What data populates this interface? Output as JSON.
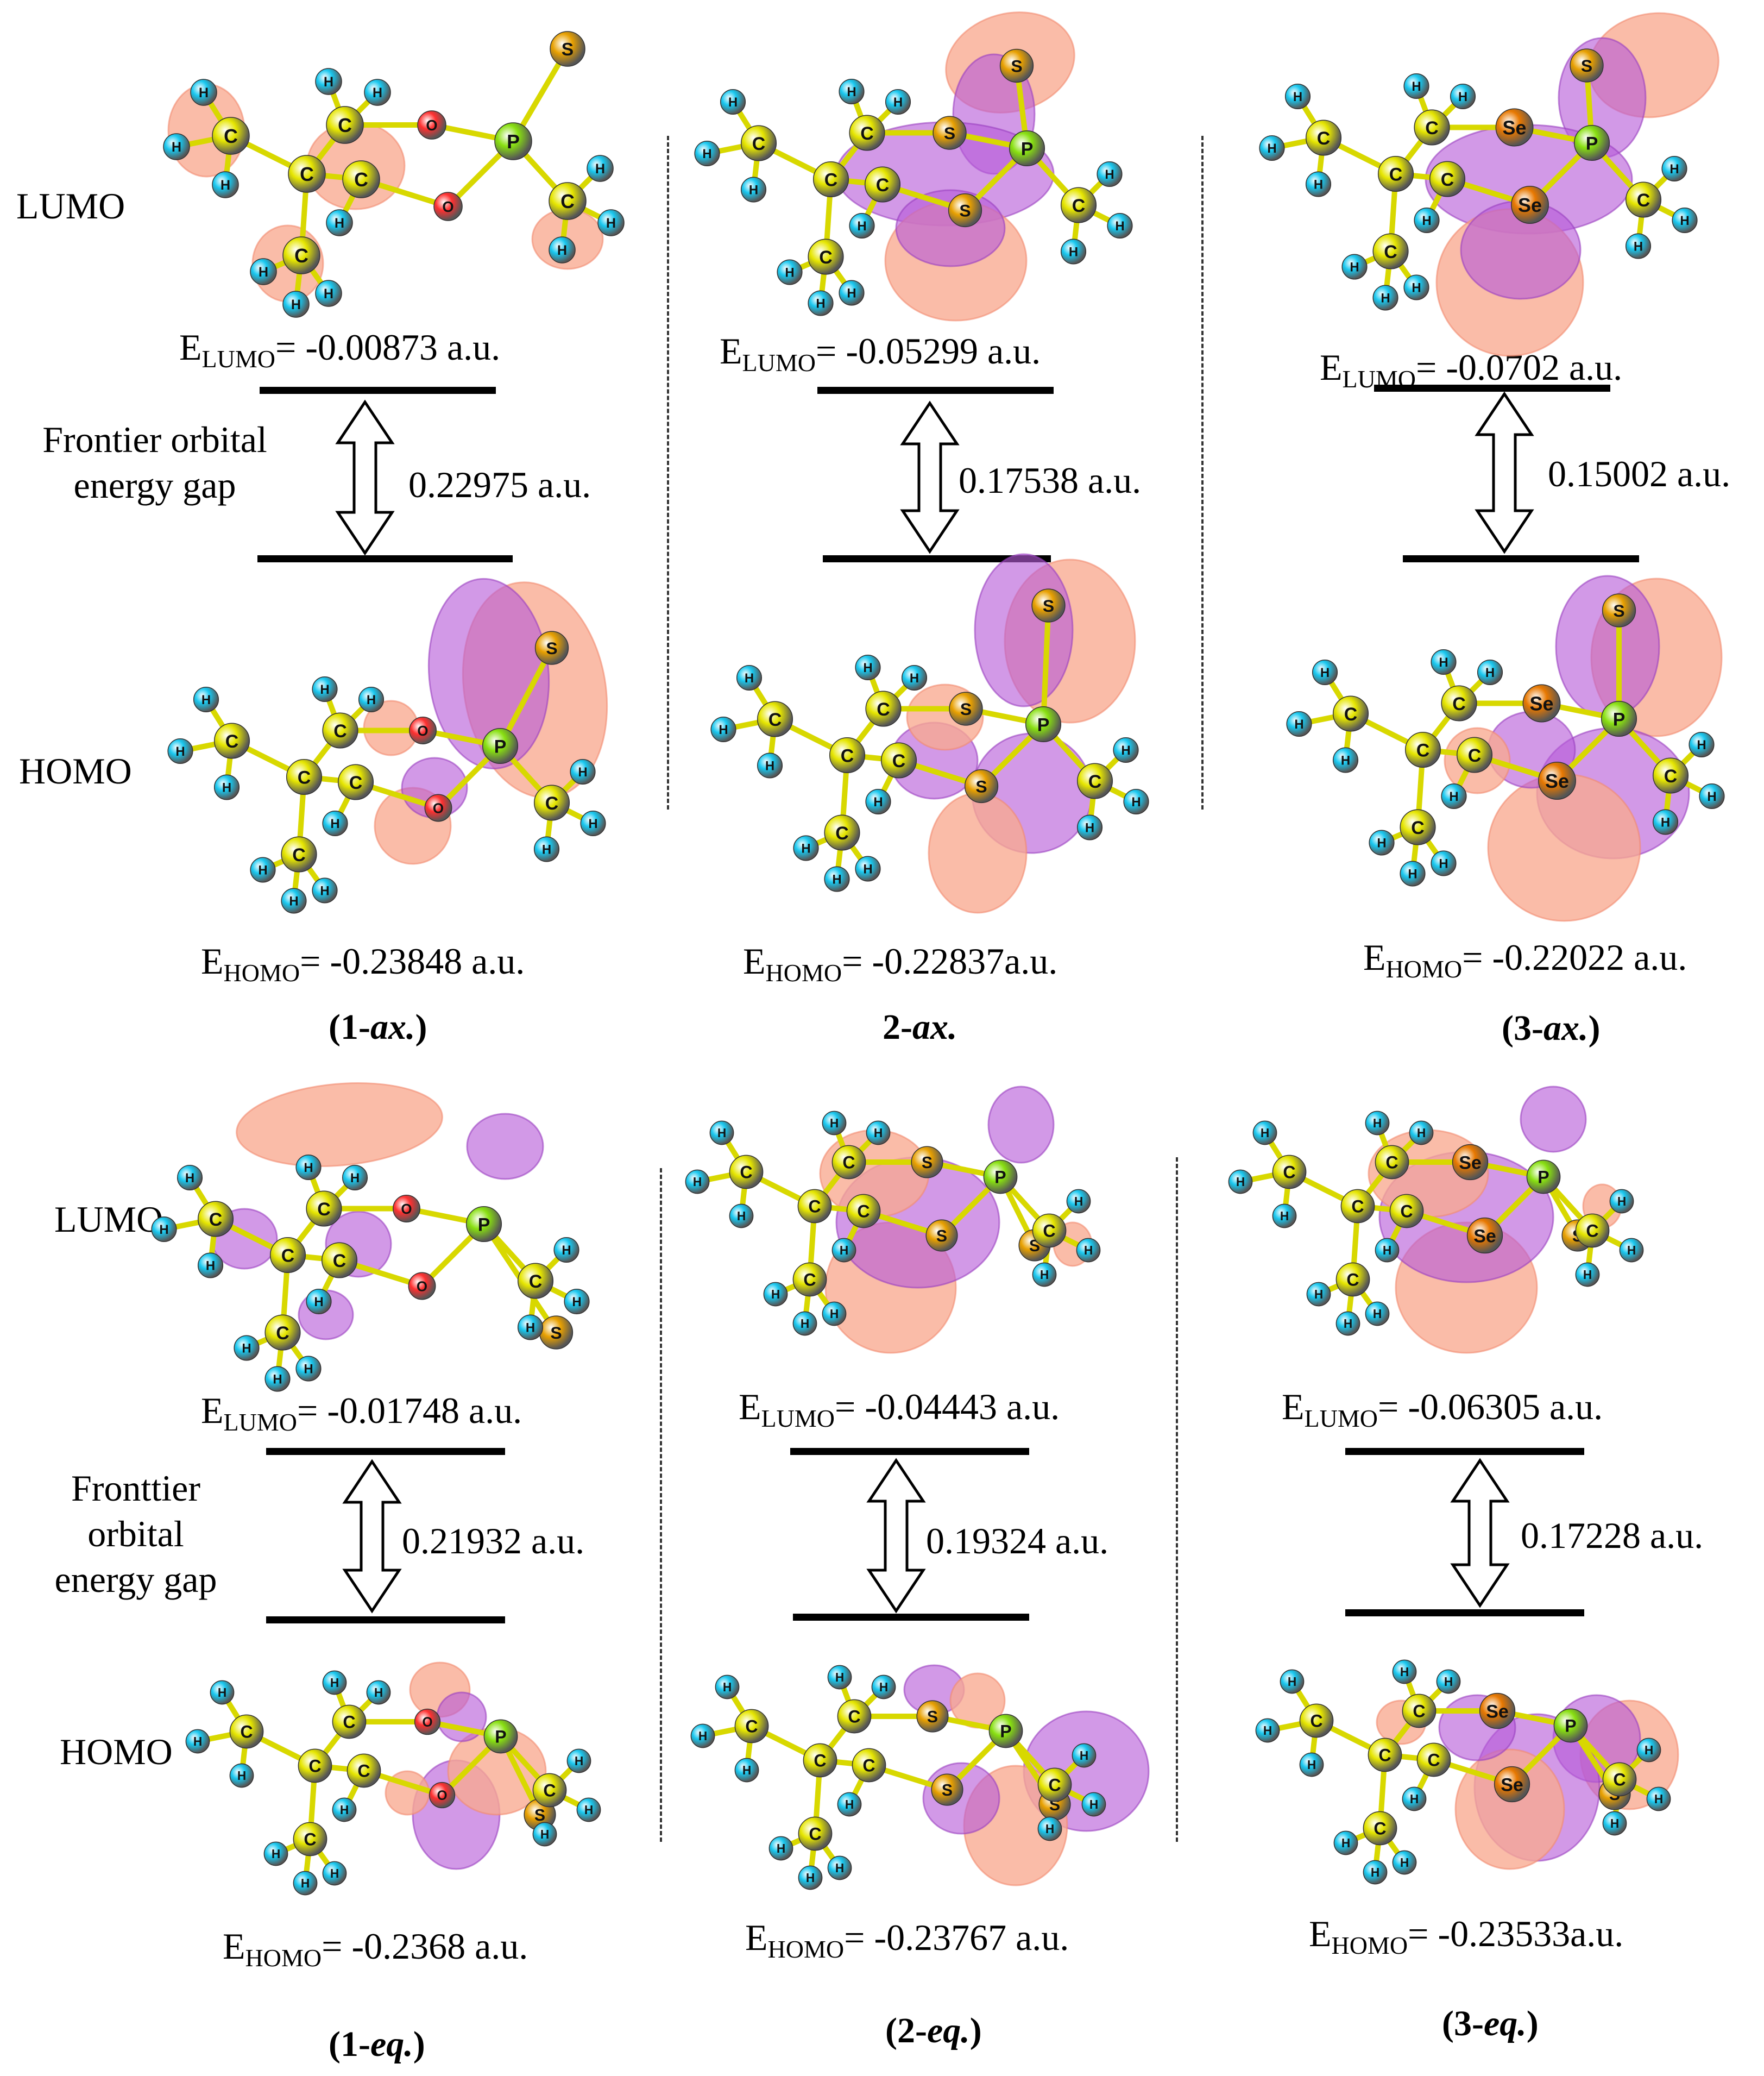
{
  "row_labels": {
    "lumo": "LUMO",
    "homo": "HOMO",
    "gap_lines_top": [
      "Frontier orbital",
      "energy gap"
    ],
    "gap_lines_bottom": [
      "Fronttier",
      "orbital",
      "energy gap"
    ]
  },
  "panels": [
    {
      "title_pre": "(",
      "title_num": "1-",
      "title_ital": "ax.",
      "title_post": ")",
      "lumo_val": "= -0.00873 a.u.",
      "gap": "0.22975 a.u.",
      "homo_val": "= -0.23848 a.u."
    },
    {
      "title_pre": "",
      "title_num": "2-",
      "title_ital": "ax.",
      "title_post": "",
      "lumo_val": "= -0.05299 a.u.",
      "gap": "0.17538 a.u.",
      "homo_val": "= -0.22837a.u."
    },
    {
      "title_pre": "(",
      "title_num": "3-",
      "title_ital": "ax.",
      "title_post": ")",
      "lumo_val": "= -0.0702 a.u.",
      "gap": "0.15002 a.u.",
      "homo_val": "= -0.22022 a.u."
    },
    {
      "title_pre": "(",
      "title_num": "1-",
      "title_ital": "eq.",
      "title_post": ")",
      "lumo_val": "= -0.01748 a.u.",
      "gap": "0.21932 a.u.",
      "homo_val": "= -0.2368 a.u."
    },
    {
      "title_pre": "(",
      "title_num": "2-",
      "title_ital": "eq.",
      "title_post": ")",
      "lumo_val": "= -0.04443 a.u.",
      "gap": "0.19324 a.u.",
      "homo_val": "= -0.23767 a.u."
    },
    {
      "title_pre": "(",
      "title_num": "3-",
      "title_ital": "eq.",
      "title_post": ")",
      "lumo_val": "= -0.06305 a.u.",
      "gap": "0.17228 a.u.",
      "homo_val": "= -0.23533a.u."
    }
  ],
  "energy_symbol": "E",
  "lumo_subscript": "LUMO",
  "homo_subscript": "HOMO",
  "atom_labels": {
    "carbon": "C",
    "hydrogen": "H",
    "oxygen": "O",
    "phosphorus": "P",
    "sulfur": "S",
    "selenium": "Se"
  },
  "colors": {
    "positive_lobe": "#f9a98f",
    "negative_lobe": "#b65ad8",
    "carbon": "#e6e600",
    "hydrogen": "#18c8f0",
    "oxygen": "#ff3030",
    "phosphorus": "#88e010",
    "sulfur": "#e8a000",
    "selenium": "#e87800",
    "bond": "#d8d800"
  }
}
